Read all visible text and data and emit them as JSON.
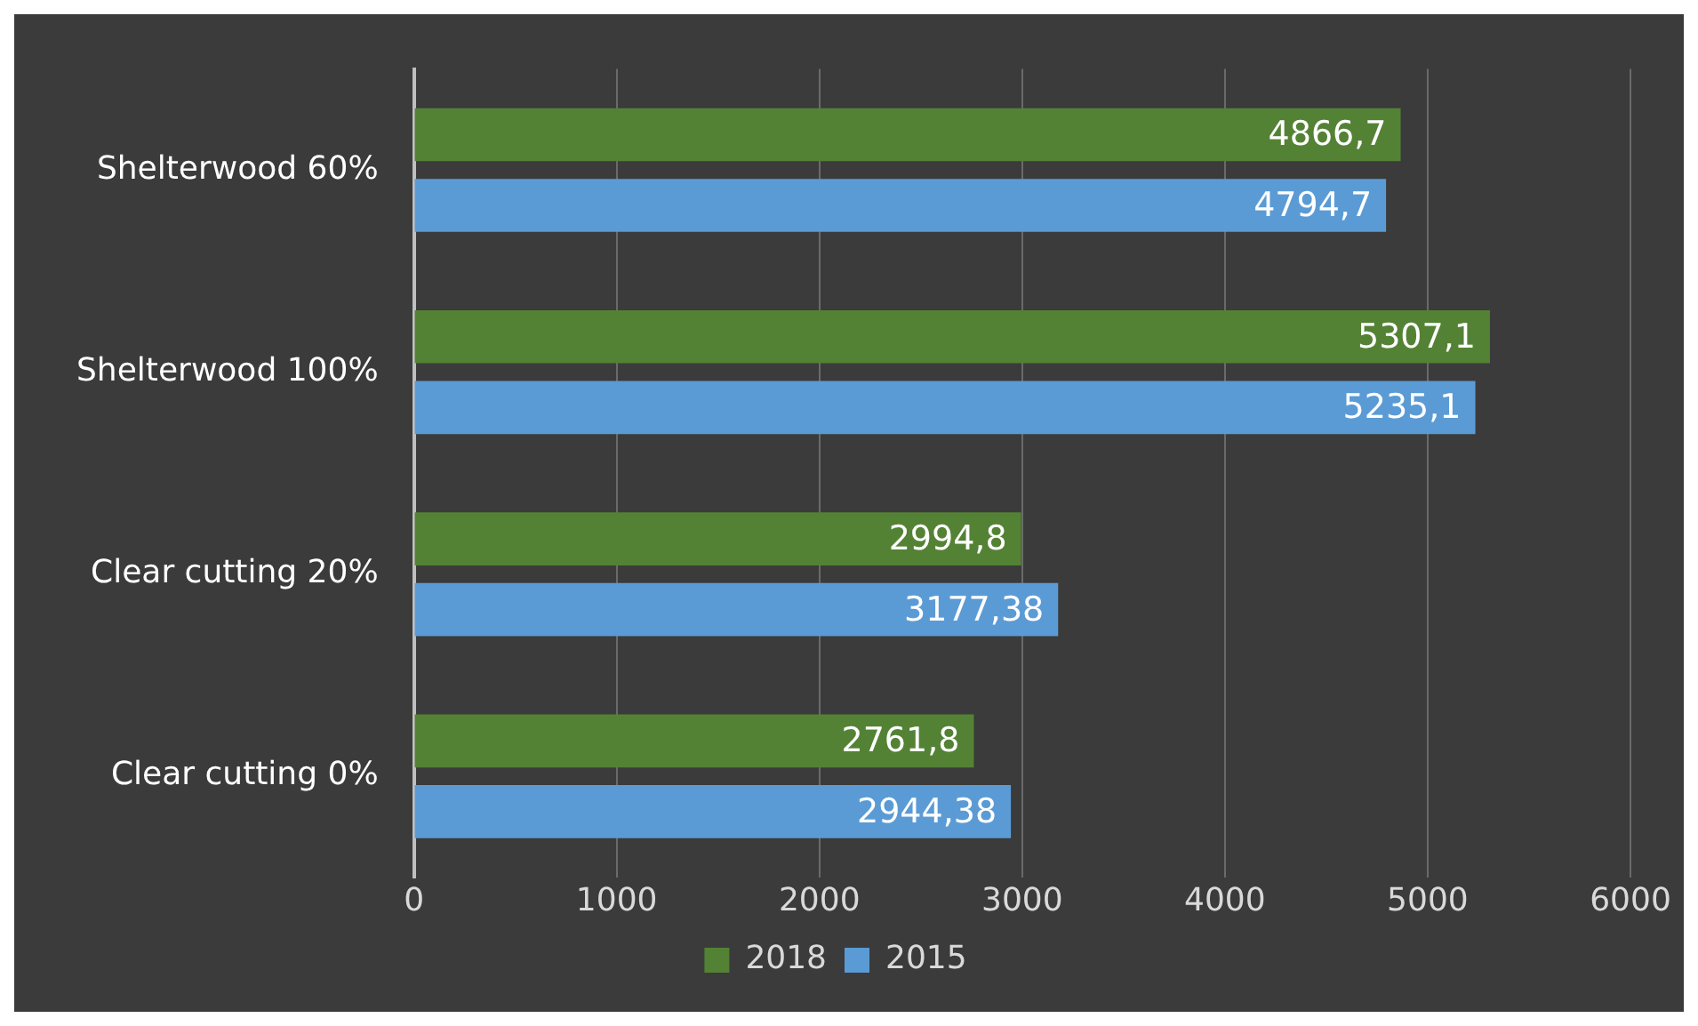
{
  "chart_data": {
    "type": "bar",
    "orientation": "horizontal",
    "categories": [
      "Shelterwood 60%",
      "Shelterwood 100%",
      "Clear cutting 20%",
      "Clear cutting 0%"
    ],
    "series": [
      {
        "name": "2018",
        "color": "#548235",
        "values": [
          4866.7,
          5307.1,
          2994.8,
          2761.8
        ],
        "value_labels": [
          "4866,7",
          "5307,1",
          "2994,8",
          "2761,8"
        ]
      },
      {
        "name": "2015",
        "color": "#5b9bd5",
        "values": [
          4794.7,
          5235.1,
          3177.38,
          2944.38
        ],
        "value_labels": [
          "4794,7",
          "5235,1",
          "3177,38",
          "2944,38"
        ]
      }
    ],
    "xlim": [
      0,
      6000
    ],
    "xticks": [
      0,
      1000,
      2000,
      3000,
      4000,
      5000,
      6000
    ],
    "grid": "x",
    "legend": "bottom"
  }
}
